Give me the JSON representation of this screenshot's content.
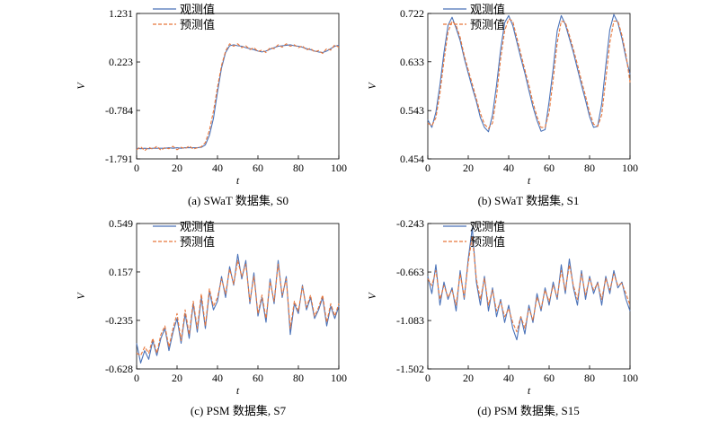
{
  "colors": {
    "observed": "#4a72b8",
    "predicted": "#e8763a"
  },
  "chart_data": [
    {
      "id": "a",
      "type": "line",
      "caption": "(a) SWaT 数据集, S0",
      "xlabel": "t",
      "ylabel": "V",
      "xlim": [
        0,
        100
      ],
      "ylim": [
        -1.791,
        1.231
      ],
      "xticks": [
        0,
        20,
        40,
        60,
        80,
        100
      ],
      "yticks": [
        -1.791,
        -0.784,
        0.223,
        1.231
      ],
      "legend": {
        "position": "top-left",
        "entries": [
          "观测值",
          "预测值"
        ]
      },
      "x": [
        0,
        2,
        4,
        6,
        8,
        10,
        12,
        14,
        16,
        18,
        20,
        22,
        24,
        26,
        28,
        30,
        32,
        34,
        36,
        38,
        40,
        42,
        44,
        46,
        48,
        50,
        52,
        54,
        56,
        58,
        60,
        62,
        64,
        66,
        68,
        70,
        72,
        74,
        76,
        78,
        80,
        82,
        84,
        86,
        88,
        90,
        92,
        94,
        96,
        98,
        100
      ],
      "series": [
        {
          "name": "观测值",
          "values": [
            -1.57,
            -1.58,
            -1.57,
            -1.58,
            -1.57,
            -1.57,
            -1.57,
            -1.57,
            -1.56,
            -1.57,
            -1.56,
            -1.57,
            -1.56,
            -1.56,
            -1.56,
            -1.56,
            -1.55,
            -1.5,
            -1.3,
            -0.95,
            -0.4,
            0.1,
            0.42,
            0.56,
            0.58,
            0.56,
            0.55,
            0.52,
            0.5,
            0.48,
            0.45,
            0.43,
            0.45,
            0.49,
            0.52,
            0.55,
            0.56,
            0.57,
            0.58,
            0.56,
            0.55,
            0.53,
            0.5,
            0.48,
            0.45,
            0.43,
            0.42,
            0.45,
            0.5,
            0.55,
            0.57
          ]
        },
        {
          "name": "预测值",
          "values": [
            -1.6,
            -1.54,
            -1.62,
            -1.55,
            -1.59,
            -1.53,
            -1.61,
            -1.56,
            -1.58,
            -1.53,
            -1.6,
            -1.55,
            -1.58,
            -1.52,
            -1.59,
            -1.56,
            -1.54,
            -1.45,
            -1.2,
            -0.8,
            -0.3,
            0.15,
            0.45,
            0.6,
            0.55,
            0.6,
            0.52,
            0.56,
            0.48,
            0.52,
            0.44,
            0.47,
            0.42,
            0.52,
            0.5,
            0.58,
            0.53,
            0.6,
            0.55,
            0.58,
            0.52,
            0.56,
            0.47,
            0.51,
            0.43,
            0.46,
            0.4,
            0.5,
            0.47,
            0.58,
            0.53
          ]
        }
      ]
    },
    {
      "id": "b",
      "type": "line",
      "caption": "(b) SWaT 数据集, S1",
      "xlabel": "t",
      "ylabel": "V",
      "xlim": [
        0,
        100
      ],
      "ylim": [
        0.454,
        0.722
      ],
      "xticks": [
        0,
        20,
        40,
        60,
        80,
        100
      ],
      "yticks": [
        0.454,
        0.543,
        0.633,
        0.722
      ],
      "legend": {
        "position": "top-right",
        "entries": [
          "观测值",
          "预测值"
        ]
      },
      "x": [
        0,
        2,
        4,
        6,
        8,
        10,
        12,
        14,
        16,
        18,
        20,
        22,
        24,
        26,
        28,
        30,
        32,
        34,
        36,
        38,
        40,
        42,
        44,
        46,
        48,
        50,
        52,
        54,
        56,
        58,
        60,
        62,
        64,
        66,
        68,
        70,
        72,
        74,
        76,
        78,
        80,
        82,
        84,
        86,
        88,
        90,
        92,
        94,
        96,
        98,
        100
      ],
      "series": [
        {
          "name": "观测值",
          "values": [
            0.526,
            0.512,
            0.54,
            0.59,
            0.65,
            0.7,
            0.715,
            0.695,
            0.672,
            0.64,
            0.612,
            0.585,
            0.56,
            0.53,
            0.512,
            0.504,
            0.535,
            0.59,
            0.655,
            0.705,
            0.718,
            0.7,
            0.67,
            0.64,
            0.612,
            0.58,
            0.55,
            0.525,
            0.505,
            0.508,
            0.56,
            0.62,
            0.69,
            0.718,
            0.702,
            0.676,
            0.65,
            0.62,
            0.59,
            0.562,
            0.532,
            0.512,
            0.514,
            0.555,
            0.625,
            0.692,
            0.72,
            0.705,
            0.676,
            0.64,
            0.61
          ]
        },
        {
          "name": "预测值",
          "values": [
            0.52,
            0.515,
            0.53,
            0.575,
            0.635,
            0.688,
            0.708,
            0.7,
            0.678,
            0.645,
            0.618,
            0.592,
            0.565,
            0.538,
            0.518,
            0.51,
            0.52,
            0.57,
            0.638,
            0.69,
            0.712,
            0.708,
            0.678,
            0.648,
            0.618,
            0.59,
            0.558,
            0.532,
            0.512,
            0.512,
            0.54,
            0.6,
            0.668,
            0.708,
            0.706,
            0.682,
            0.656,
            0.628,
            0.598,
            0.57,
            0.54,
            0.518,
            0.514,
            0.535,
            0.6,
            0.668,
            0.708,
            0.708,
            0.682,
            0.646,
            0.595
          ]
        }
      ]
    },
    {
      "id": "c",
      "type": "line",
      "caption": "(c) PSM 数据集, S7",
      "xlabel": "t",
      "ylabel": "V",
      "xlim": [
        0,
        100
      ],
      "ylim": [
        -0.628,
        0.549
      ],
      "xticks": [
        0,
        20,
        40,
        60,
        80,
        100
      ],
      "yticks": [
        -0.628,
        -0.235,
        0.157,
        0.549
      ],
      "legend": {
        "position": "top-left",
        "entries": [
          "观测值",
          "预测值"
        ]
      },
      "x": [
        0,
        2,
        4,
        6,
        8,
        10,
        12,
        14,
        16,
        18,
        20,
        22,
        24,
        26,
        28,
        30,
        32,
        34,
        36,
        38,
        40,
        42,
        44,
        46,
        48,
        50,
        52,
        54,
        56,
        58,
        60,
        62,
        64,
        66,
        68,
        70,
        72,
        74,
        76,
        78,
        80,
        82,
        84,
        86,
        88,
        90,
        92,
        94,
        96,
        98,
        100
      ],
      "series": [
        {
          "name": "观测值",
          "values": [
            -0.42,
            -0.58,
            -0.48,
            -0.55,
            -0.4,
            -0.52,
            -0.38,
            -0.3,
            -0.48,
            -0.33,
            -0.22,
            -0.42,
            -0.18,
            -0.38,
            -0.1,
            -0.33,
            -0.05,
            -0.3,
            0.0,
            -0.15,
            -0.08,
            0.12,
            -0.05,
            0.2,
            0.05,
            0.3,
            0.1,
            0.25,
            -0.1,
            0.15,
            -0.2,
            -0.05,
            -0.25,
            0.1,
            -0.1,
            0.25,
            -0.05,
            0.12,
            -0.35,
            -0.1,
            -0.18,
            0.05,
            -0.15,
            -0.05,
            -0.22,
            -0.15,
            -0.05,
            -0.28,
            -0.12,
            -0.22,
            -0.12
          ]
        },
        {
          "name": "预测值",
          "values": [
            -0.5,
            -0.52,
            -0.45,
            -0.5,
            -0.38,
            -0.5,
            -0.35,
            -0.28,
            -0.45,
            -0.3,
            -0.18,
            -0.4,
            -0.15,
            -0.35,
            -0.08,
            -0.3,
            -0.02,
            -0.28,
            0.02,
            -0.12,
            -0.05,
            0.1,
            -0.02,
            0.18,
            0.06,
            0.25,
            0.12,
            0.22,
            -0.08,
            0.12,
            -0.18,
            -0.03,
            -0.22,
            0.08,
            -0.08,
            0.22,
            -0.03,
            0.1,
            -0.3,
            -0.08,
            -0.16,
            0.04,
            -0.13,
            -0.03,
            -0.2,
            -0.13,
            -0.03,
            -0.25,
            -0.1,
            -0.2,
            -0.1
          ]
        }
      ]
    },
    {
      "id": "d",
      "type": "line",
      "caption": "(d) PSM 数据集, S15",
      "xlabel": "t",
      "ylabel": "V",
      "xlim": [
        0,
        100
      ],
      "ylim": [
        -1.502,
        -0.243
      ],
      "xticks": [
        0,
        20,
        40,
        60,
        80,
        100
      ],
      "yticks": [
        -1.502,
        -1.083,
        -0.663,
        -0.243
      ],
      "legend": {
        "position": "top-right",
        "entries": [
          "观测值",
          "预测值"
        ]
      },
      "x": [
        0,
        2,
        4,
        6,
        8,
        10,
        12,
        14,
        16,
        18,
        20,
        22,
        24,
        26,
        28,
        30,
        32,
        34,
        36,
        38,
        40,
        42,
        44,
        46,
        48,
        50,
        52,
        54,
        56,
        58,
        60,
        62,
        64,
        66,
        68,
        70,
        72,
        74,
        76,
        78,
        80,
        82,
        84,
        86,
        88,
        90,
        92,
        94,
        96,
        98,
        100
      ],
      "series": [
        {
          "name": "观测值",
          "values": [
            -0.7,
            -0.85,
            -0.6,
            -0.95,
            -0.75,
            -0.9,
            -0.8,
            -1.0,
            -0.65,
            -0.9,
            -0.55,
            -0.28,
            -0.75,
            -0.95,
            -0.7,
            -1.0,
            -0.8,
            -1.05,
            -0.9,
            -1.1,
            -0.95,
            -1.15,
            -1.25,
            -1.05,
            -1.2,
            -0.95,
            -1.1,
            -0.85,
            -1.0,
            -0.8,
            -0.95,
            -0.75,
            -0.9,
            -0.6,
            -0.85,
            -0.55,
            -0.8,
            -0.95,
            -0.65,
            -0.9,
            -0.7,
            -0.85,
            -0.75,
            -0.95,
            -0.7,
            -0.85,
            -0.65,
            -0.8,
            -0.75,
            -0.9,
            -1.0
          ]
        },
        {
          "name": "预测值",
          "values": [
            -0.72,
            -0.78,
            -0.65,
            -0.9,
            -0.78,
            -0.88,
            -0.82,
            -0.95,
            -0.68,
            -0.88,
            -0.58,
            -0.35,
            -0.72,
            -0.9,
            -0.72,
            -0.95,
            -0.82,
            -1.0,
            -0.92,
            -1.05,
            -0.98,
            -1.1,
            -1.18,
            -1.05,
            -1.15,
            -0.98,
            -1.08,
            -0.88,
            -0.98,
            -0.82,
            -0.92,
            -0.78,
            -0.88,
            -0.65,
            -0.82,
            -0.6,
            -0.78,
            -0.9,
            -0.68,
            -0.86,
            -0.72,
            -0.82,
            -0.76,
            -0.9,
            -0.72,
            -0.82,
            -0.68,
            -0.78,
            -0.76,
            -0.85,
            -0.95
          ]
        }
      ]
    }
  ]
}
